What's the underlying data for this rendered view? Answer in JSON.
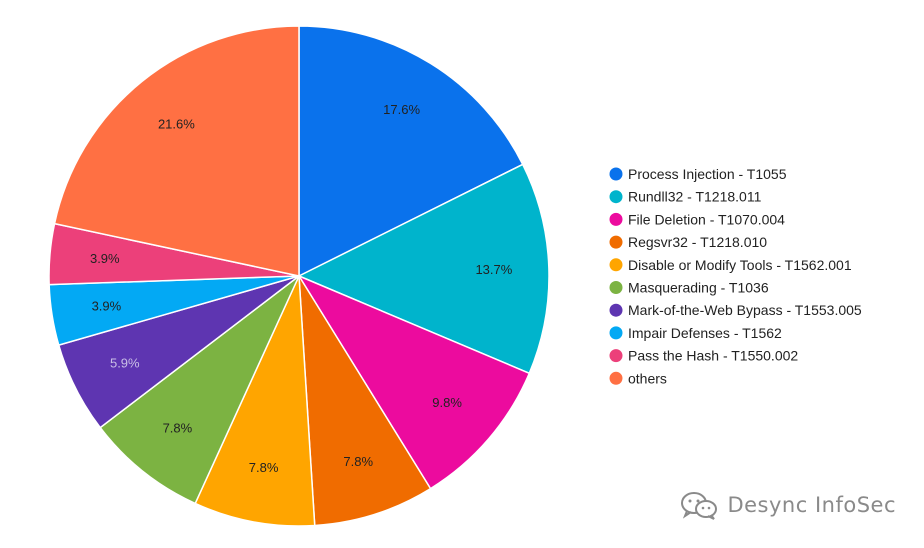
{
  "chart_data": {
    "type": "pie",
    "title": "",
    "legend_position": "right",
    "slices": [
      {
        "label": "Process Injection - T1055",
        "value": 17.6,
        "display": "17.6%",
        "color": "#0a72ec",
        "label_color": "#222222"
      },
      {
        "label": "Rundll32 - T1218.011",
        "value": 13.7,
        "display": "13.7%",
        "color": "#00b4cc",
        "label_color": "#222222"
      },
      {
        "label": "File Deletion - T1070.004",
        "value": 9.8,
        "display": "9.8%",
        "color": "#ec0b9e",
        "label_color": "#222222"
      },
      {
        "label": "Regsvr32 - T1218.010",
        "value": 7.8,
        "display": "7.8%",
        "color": "#f06c00",
        "label_color": "#222222"
      },
      {
        "label": "Disable or Modify Tools - T1562.001",
        "value": 7.8,
        "display": "7.8%",
        "color": "#ffa500",
        "label_color": "#222222"
      },
      {
        "label": "Masquerading - T1036",
        "value": 7.8,
        "display": "7.8%",
        "color": "#7cb342",
        "label_color": "#222222"
      },
      {
        "label": "Mark-of-the-Web Bypass - T1553.005",
        "value": 5.9,
        "display": "5.9%",
        "color": "#5e35b1",
        "label_color": "#c9bfe6"
      },
      {
        "label": "Impair Defenses - T1562",
        "value": 3.9,
        "display": "3.9%",
        "color": "#03a9f4",
        "label_color": "#222222"
      },
      {
        "label": "Pass the Hash - T1550.002",
        "value": 3.9,
        "display": "3.9%",
        "color": "#ec407a",
        "label_color": "#222222"
      },
      {
        "label": "others",
        "value": 21.6,
        "display": "21.6%",
        "color": "#ff7043",
        "label_color": "#222222"
      }
    ]
  },
  "watermark": {
    "text": "Desync InfoSec",
    "icon": "wechat-icon"
  }
}
